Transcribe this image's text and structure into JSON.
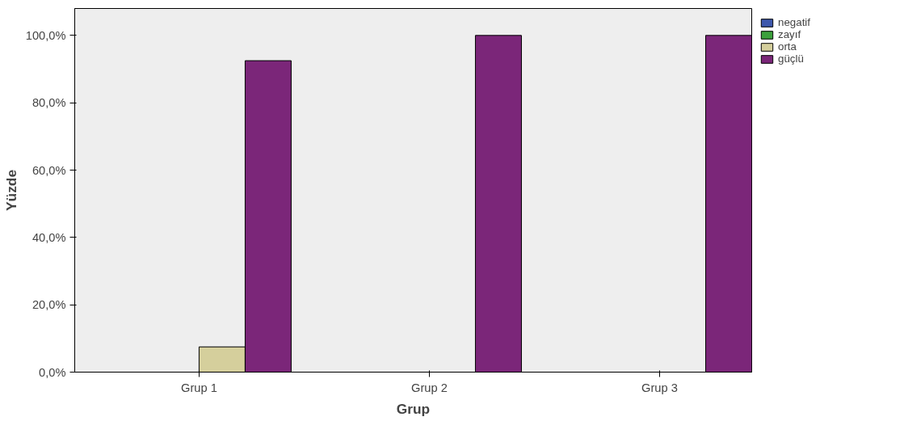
{
  "chart_data": {
    "type": "bar",
    "xlabel": "Grup",
    "ylabel": "Yüzde",
    "categories": [
      "Grup 1",
      "Grup 2",
      "Grup 3"
    ],
    "series": [
      {
        "name": "negatif",
        "color": "#3e58ac",
        "values": [
          null,
          null,
          null
        ]
      },
      {
        "name": "zayıf",
        "color": "#3ca03c",
        "values": [
          null,
          null,
          null
        ]
      },
      {
        "name": "orta",
        "color": "#d5cf9c",
        "values": [
          7.5,
          null,
          null
        ]
      },
      {
        "name": "güçlü",
        "color": "#7b2679",
        "values": [
          92.5,
          100,
          100
        ]
      }
    ],
    "ylim": [
      0,
      108
    ],
    "yticks": [
      {
        "value": 0,
        "label": "0,0%"
      },
      {
        "value": 20,
        "label": "20,0%"
      },
      {
        "value": 40,
        "label": "40,0%"
      },
      {
        "value": 60,
        "label": "60,0%"
      },
      {
        "value": 80,
        "label": "80,0%"
      },
      {
        "value": 100,
        "label": "100,0%"
      }
    ],
    "grid": false,
    "legend": "top right"
  }
}
